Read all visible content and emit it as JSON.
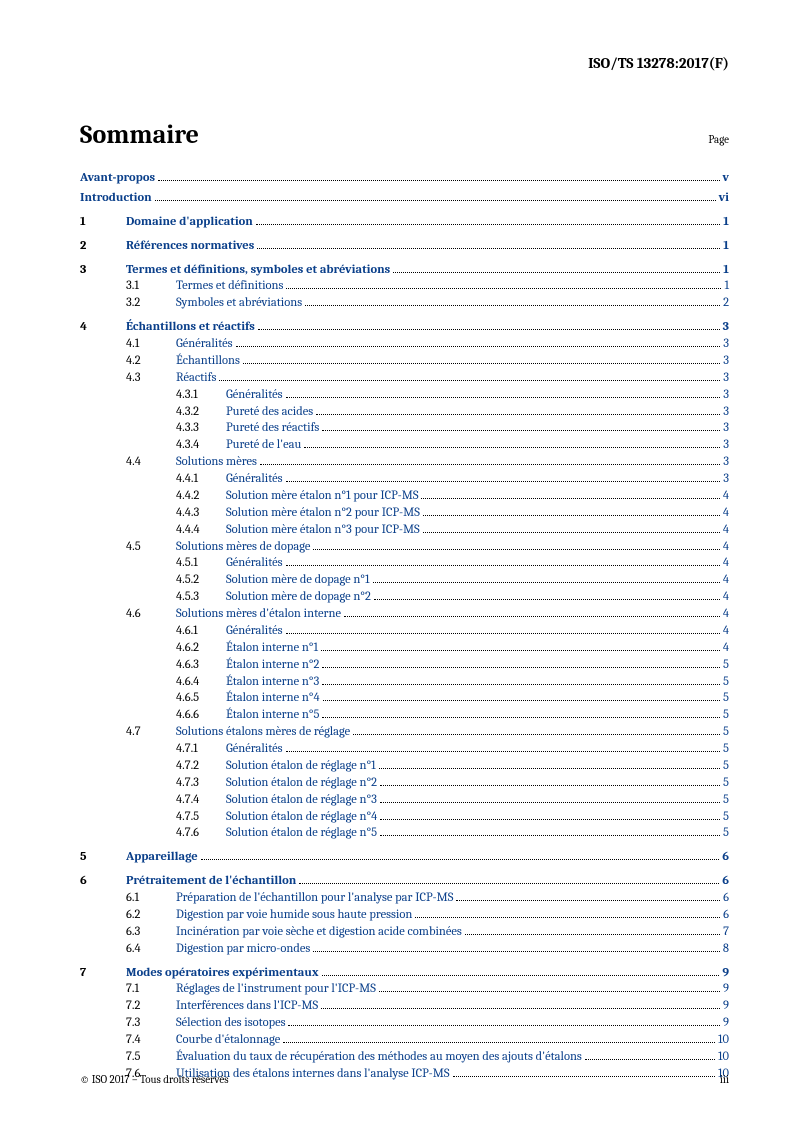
{
  "doc_id": "ISO/TS 13278:2017(F)",
  "title": "Sommaire",
  "page_label": "Page",
  "footer_left": "© ISO 2017 – Tous droits réservés",
  "footer_right": "iii",
  "colors": {
    "link": "#0a3f8a",
    "text": "#000000",
    "bg": "#ffffff"
  },
  "entries": [
    {
      "level": 0,
      "num": "",
      "title": "Avant-propos",
      "page": "v",
      "bold": true,
      "link": true
    },
    {
      "level": 0,
      "num": "",
      "title": "Introduction",
      "page": "vi",
      "bold": true,
      "link": true
    },
    {
      "level": 1,
      "num": "1",
      "title": "Domaine d'application",
      "page": "1",
      "bold": true,
      "link": true
    },
    {
      "level": 1,
      "num": "2",
      "title": "Références normatives",
      "page": "1",
      "bold": true,
      "link": true
    },
    {
      "level": 1,
      "num": "3",
      "title": "Termes et définitions, symboles et abréviations",
      "page": "1",
      "bold": true,
      "link": true
    },
    {
      "level": 2,
      "num": "3.1",
      "title": "Termes et définitions",
      "page": "1",
      "bold": false,
      "link": true
    },
    {
      "level": 2,
      "num": "3.2",
      "title": "Symboles et abréviations",
      "page": "2",
      "bold": false,
      "link": true
    },
    {
      "level": 1,
      "num": "4",
      "title": "Échantillons et réactifs",
      "page": "3",
      "bold": true,
      "link": true
    },
    {
      "level": 2,
      "num": "4.1",
      "title": "Généralités",
      "page": "3",
      "bold": false,
      "link": true
    },
    {
      "level": 2,
      "num": "4.2",
      "title": "Échantillons",
      "page": "3",
      "bold": false,
      "link": true
    },
    {
      "level": 2,
      "num": "4.3",
      "title": "Réactifs",
      "page": "3",
      "bold": false,
      "link": true
    },
    {
      "level": 3,
      "num": "4.3.1",
      "title": "Généralités",
      "page": "3",
      "bold": false,
      "link": true
    },
    {
      "level": 3,
      "num": "4.3.2",
      "title": "Pureté des acides",
      "page": "3",
      "bold": false,
      "link": true
    },
    {
      "level": 3,
      "num": "4.3.3",
      "title": "Pureté des réactifs",
      "page": "3",
      "bold": false,
      "link": true
    },
    {
      "level": 3,
      "num": "4.3.4",
      "title": "Pureté de l'eau",
      "page": "3",
      "bold": false,
      "link": true
    },
    {
      "level": 2,
      "num": "4.4",
      "title": "Solutions mères",
      "page": "3",
      "bold": false,
      "link": true
    },
    {
      "level": 3,
      "num": "4.4.1",
      "title": "Généralités",
      "page": "3",
      "bold": false,
      "link": true
    },
    {
      "level": 3,
      "num": "4.4.2",
      "title": "Solution mère étalon n°1 pour ICP-MS",
      "page": "4",
      "bold": false,
      "link": true
    },
    {
      "level": 3,
      "num": "4.4.3",
      "title": "Solution mère étalon n°2 pour ICP-MS",
      "page": "4",
      "bold": false,
      "link": true
    },
    {
      "level": 3,
      "num": "4.4.4",
      "title": "Solution mère étalon n°3 pour ICP-MS",
      "page": "4",
      "bold": false,
      "link": true
    },
    {
      "level": 2,
      "num": "4.5",
      "title": "Solutions mères de dopage",
      "page": "4",
      "bold": false,
      "link": true
    },
    {
      "level": 3,
      "num": "4.5.1",
      "title": "Généralités",
      "page": "4",
      "bold": false,
      "link": true
    },
    {
      "level": 3,
      "num": "4.5.2",
      "title": "Solution mère de dopage n°1",
      "page": "4",
      "bold": false,
      "link": true
    },
    {
      "level": 3,
      "num": "4.5.3",
      "title": "Solution mère de dopage n°2",
      "page": "4",
      "bold": false,
      "link": true
    },
    {
      "level": 2,
      "num": "4.6",
      "title": "Solutions mères d'étalon interne",
      "page": "4",
      "bold": false,
      "link": true
    },
    {
      "level": 3,
      "num": "4.6.1",
      "title": "Généralités",
      "page": "4",
      "bold": false,
      "link": true
    },
    {
      "level": 3,
      "num": "4.6.2",
      "title": "Étalon interne n°1",
      "page": "4",
      "bold": false,
      "link": true
    },
    {
      "level": 3,
      "num": "4.6.3",
      "title": "Étalon interne n°2",
      "page": "5",
      "bold": false,
      "link": true
    },
    {
      "level": 3,
      "num": "4.6.4",
      "title": "Étalon interne n°3",
      "page": "5",
      "bold": false,
      "link": true
    },
    {
      "level": 3,
      "num": "4.6.5",
      "title": "Étalon interne n°4",
      "page": "5",
      "bold": false,
      "link": true
    },
    {
      "level": 3,
      "num": "4.6.6",
      "title": "Étalon interne n°5",
      "page": "5",
      "bold": false,
      "link": true
    },
    {
      "level": 2,
      "num": "4.7",
      "title": "Solutions étalons mères de réglage",
      "page": "5",
      "bold": false,
      "link": true
    },
    {
      "level": 3,
      "num": "4.7.1",
      "title": "Généralités",
      "page": "5",
      "bold": false,
      "link": true
    },
    {
      "level": 3,
      "num": "4.7.2",
      "title": "Solution étalon de réglage n°1",
      "page": "5",
      "bold": false,
      "link": true
    },
    {
      "level": 3,
      "num": "4.7.3",
      "title": "Solution étalon de réglage n°2",
      "page": "5",
      "bold": false,
      "link": true
    },
    {
      "level": 3,
      "num": "4.7.4",
      "title": "Solution étalon de réglage n°3",
      "page": "5",
      "bold": false,
      "link": true
    },
    {
      "level": 3,
      "num": "4.7.5",
      "title": "Solution étalon de réglage n°4",
      "page": "5",
      "bold": false,
      "link": true
    },
    {
      "level": 3,
      "num": "4.7.6",
      "title": "Solution étalon de réglage n°5",
      "page": "5",
      "bold": false,
      "link": true
    },
    {
      "level": 1,
      "num": "5",
      "title": "Appareillage",
      "page": "6",
      "bold": true,
      "link": true
    },
    {
      "level": 1,
      "num": "6",
      "title": "Prétraitement de l'échantillon",
      "page": "6",
      "bold": true,
      "link": true
    },
    {
      "level": 2,
      "num": "6.1",
      "title": "Préparation de l'échantillon pour l'analyse par ICP-MS",
      "page": "6",
      "bold": false,
      "link": true
    },
    {
      "level": 2,
      "num": "6.2",
      "title": "Digestion par voie humide sous haute pression",
      "page": "6",
      "bold": false,
      "link": true
    },
    {
      "level": 2,
      "num": "6.3",
      "title": "Incinération par voie sèche et digestion acide combinées",
      "page": "7",
      "bold": false,
      "link": true
    },
    {
      "level": 2,
      "num": "6.4",
      "title": "Digestion par micro-ondes",
      "page": "8",
      "bold": false,
      "link": true
    },
    {
      "level": 1,
      "num": "7",
      "title": "Modes opératoires expérimentaux",
      "page": "9",
      "bold": true,
      "link": true
    },
    {
      "level": 2,
      "num": "7.1",
      "title": "Réglages de l'instrument pour l'ICP-MS",
      "page": "9",
      "bold": false,
      "link": true
    },
    {
      "level": 2,
      "num": "7.2",
      "title": "Interférences dans l'ICP-MS",
      "page": "9",
      "bold": false,
      "link": true
    },
    {
      "level": 2,
      "num": "7.3",
      "title": "Sélection des isotopes",
      "page": "9",
      "bold": false,
      "link": true
    },
    {
      "level": 2,
      "num": "7.4",
      "title": "Courbe d'étalonnage",
      "page": "10",
      "bold": false,
      "link": true
    },
    {
      "level": 2,
      "num": "7.5",
      "title": "Évaluation du taux de récupération des méthodes au moyen des ajouts d'étalons",
      "page": "10",
      "bold": false,
      "link": true
    },
    {
      "level": 2,
      "num": "7.6",
      "title": "Utilisation des étalons internes dans l'analyse ICP-MS",
      "page": "10",
      "bold": false,
      "link": true
    }
  ]
}
